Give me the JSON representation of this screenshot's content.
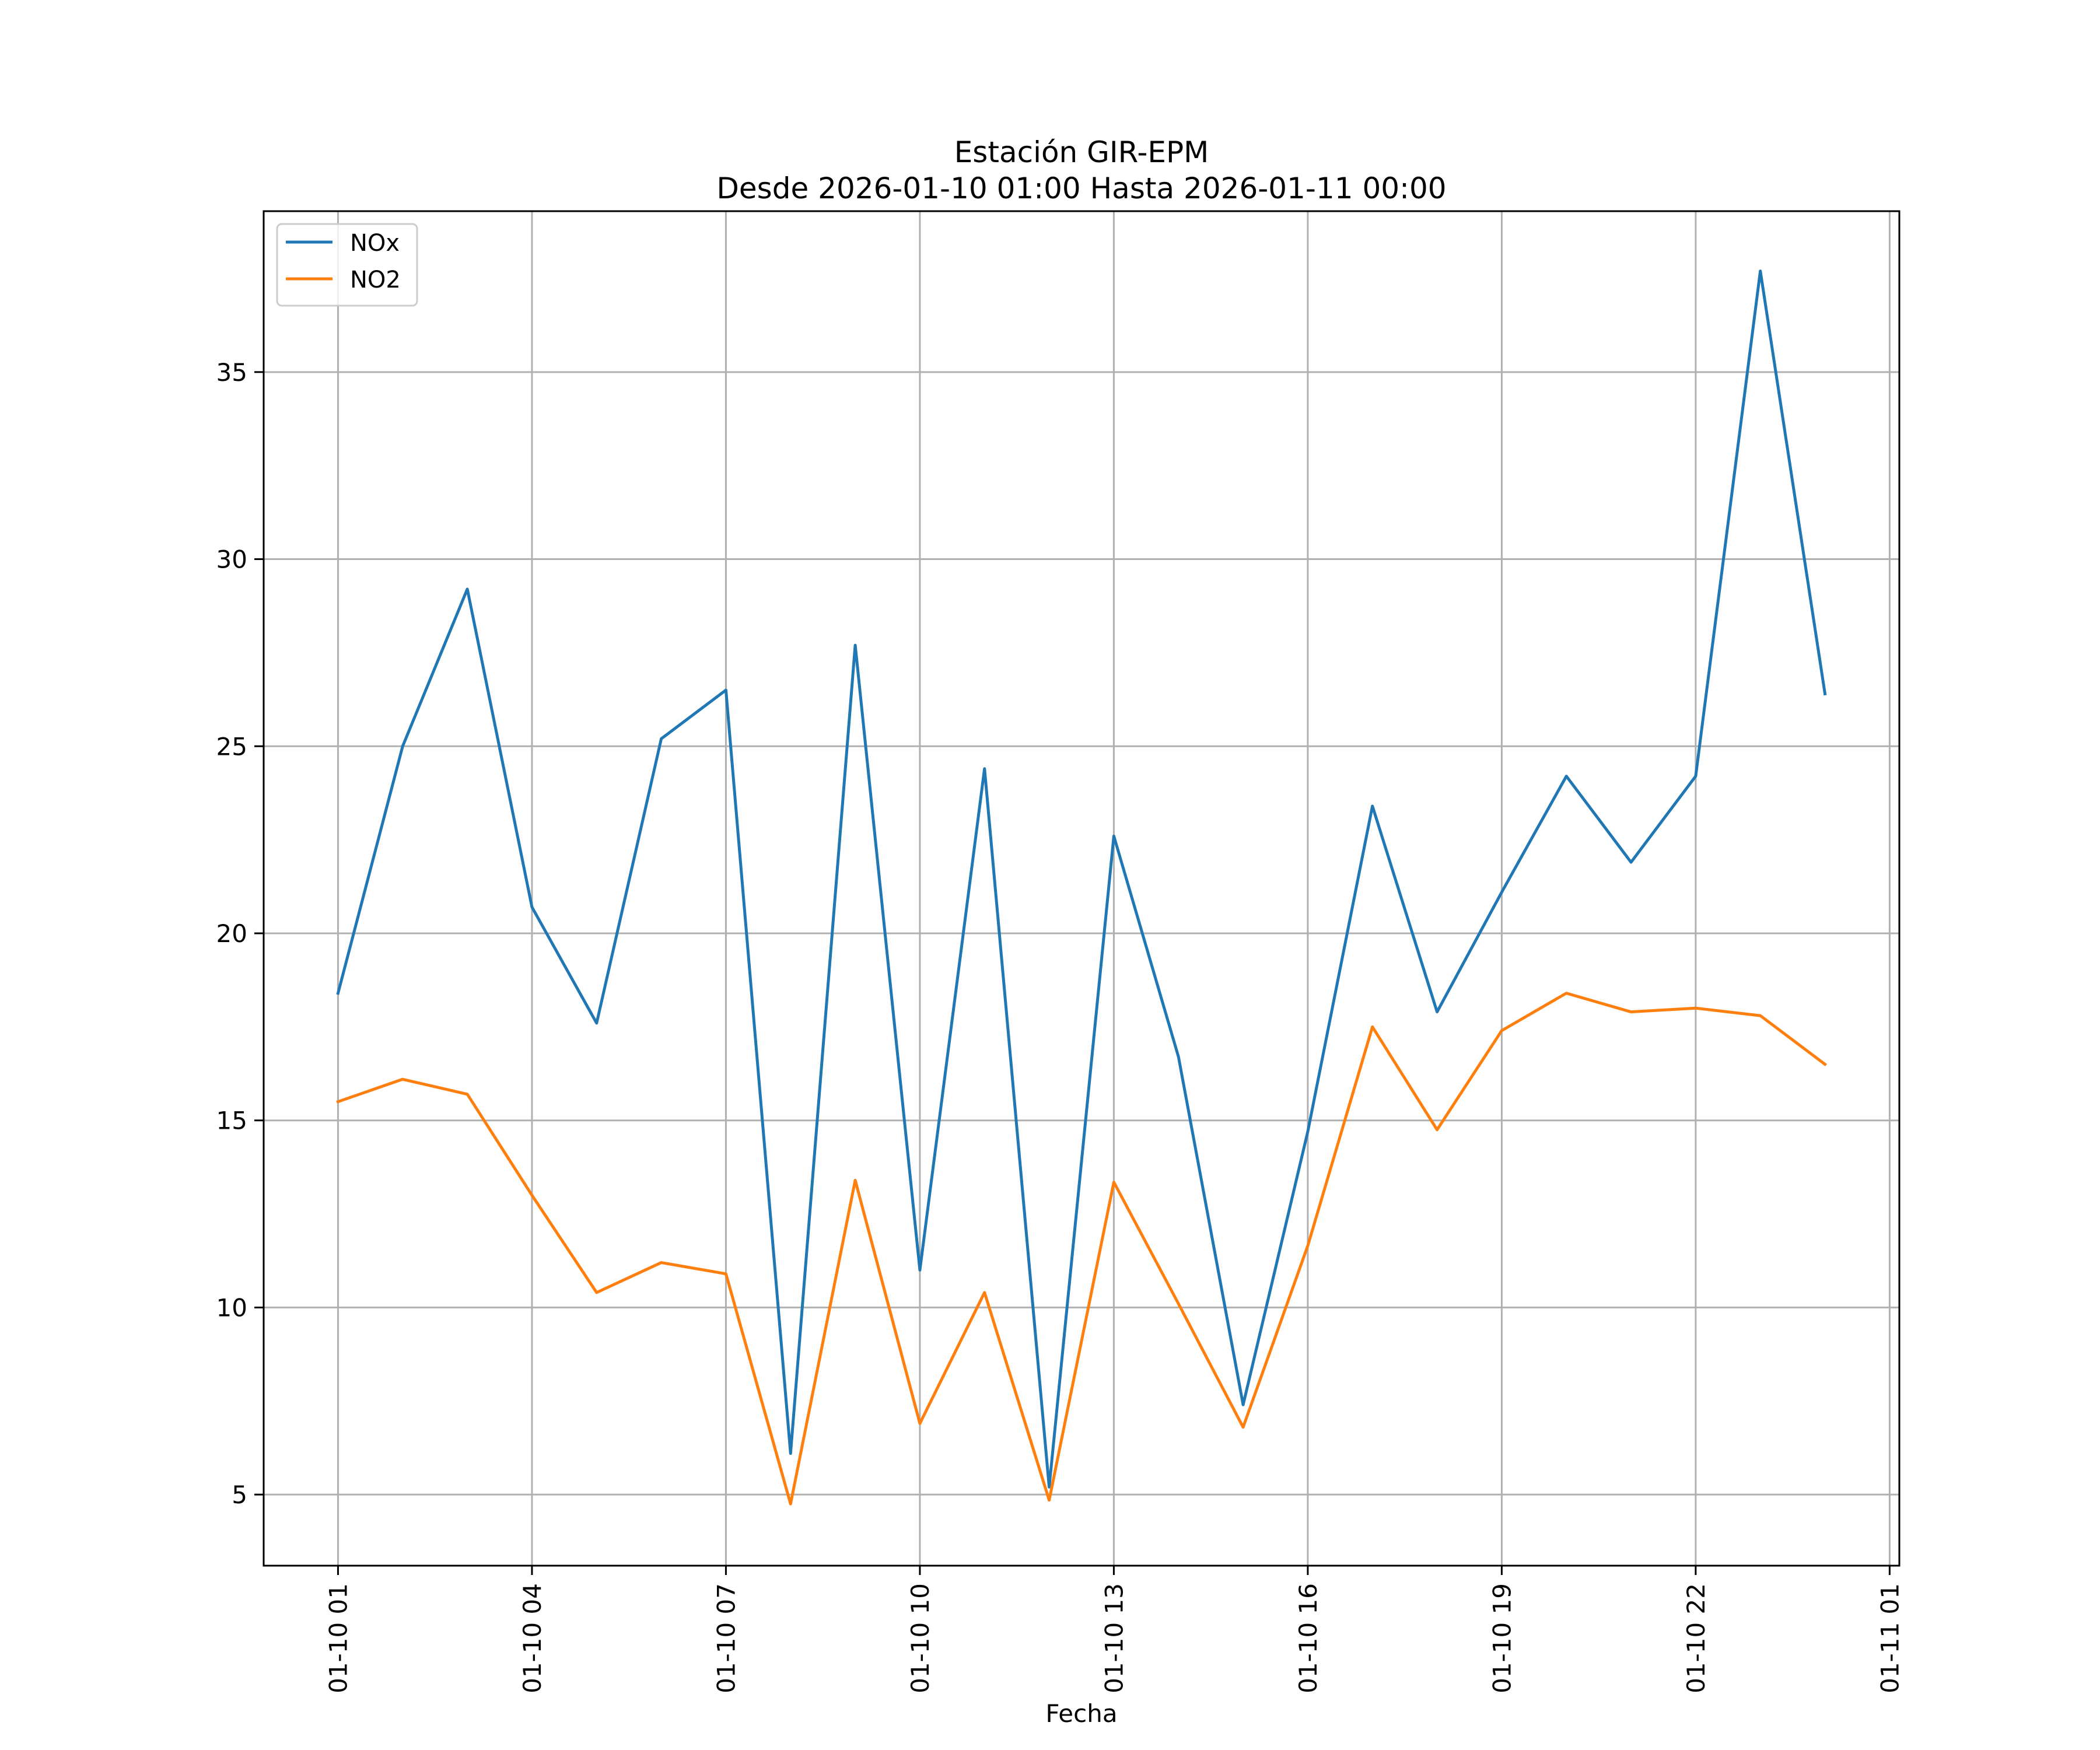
{
  "chart_data": {
    "type": "line",
    "title": "Estación GIR-EPM",
    "subtitle": "Desde 2026-01-10 01:00 Hasta 2026-01-11 00:00",
    "xlabel": "Fecha",
    "ylabel": "",
    "x": [
      "2026-01-10 01:00",
      "2026-01-10 02:00",
      "2026-01-10 03:00",
      "2026-01-10 04:00",
      "2026-01-10 05:00",
      "2026-01-10 06:00",
      "2026-01-10 07:00",
      "2026-01-10 08:00",
      "2026-01-10 09:00",
      "2026-01-10 10:00",
      "2026-01-10 11:00",
      "2026-01-10 12:00",
      "2026-01-10 13:00",
      "2026-01-10 14:00",
      "2026-01-10 15:00",
      "2026-01-10 16:00",
      "2026-01-10 17:00",
      "2026-01-10 18:00",
      "2026-01-10 19:00",
      "2026-01-10 20:00",
      "2026-01-10 21:00",
      "2026-01-10 22:00",
      "2026-01-10 23:00",
      "2026-01-11 00:00"
    ],
    "series": [
      {
        "name": "NOx",
        "color": "#1f77b4",
        "values": [
          18.4,
          25.0,
          29.2,
          20.7,
          17.6,
          25.2,
          26.5,
          6.1,
          27.7,
          11.0,
          24.4,
          5.2,
          22.6,
          16.7,
          7.4,
          14.7,
          23.4,
          17.9,
          21.1,
          24.2,
          21.9,
          24.2,
          37.7,
          26.4
        ]
      },
      {
        "name": "NO2",
        "color": "#ff7f0e",
        "values": [
          15.5,
          16.1,
          15.7,
          13.0,
          10.4,
          11.2,
          10.9,
          4.75,
          13.4,
          6.9,
          10.4,
          4.85,
          13.35,
          10.1,
          6.8,
          11.65,
          17.5,
          14.75,
          17.4,
          18.4,
          17.9,
          18.0,
          17.8,
          16.5
        ]
      }
    ],
    "xticks": [
      "01-10 01",
      "01-10 04",
      "01-10 07",
      "01-10 10",
      "01-10 13",
      "01-10 16",
      "01-10 19",
      "01-10 22",
      "01-11 01"
    ],
    "yticks": [
      "5",
      "10",
      "15",
      "20",
      "25",
      "30",
      "35"
    ],
    "ylim": [
      3.1,
      39.3
    ],
    "xlim": [
      "2026-01-09 23:51",
      "2026-01-11 01:09"
    ],
    "grid": true,
    "legend": "top-left"
  }
}
